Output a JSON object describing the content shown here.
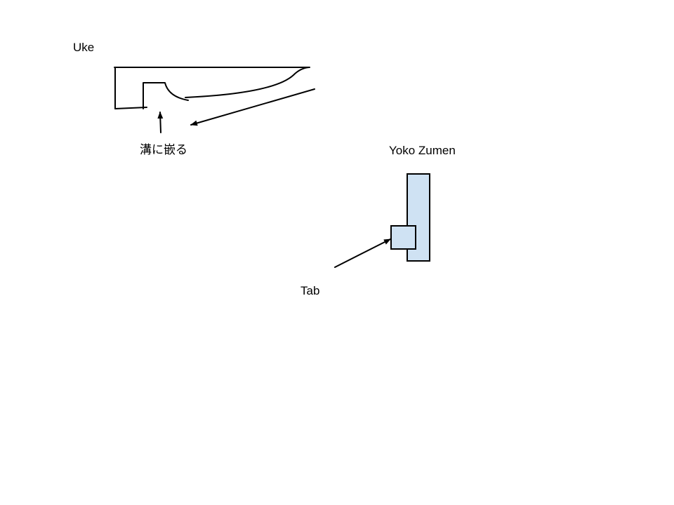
{
  "labels": {
    "uke": "Uke",
    "groove_fit": "溝に嵌る",
    "yoko_zumen": "Yoko Zumen",
    "tab": "Tab"
  },
  "colors": {
    "line": "#000000",
    "fill": "#cfe2f3",
    "background": "#ffffff"
  }
}
